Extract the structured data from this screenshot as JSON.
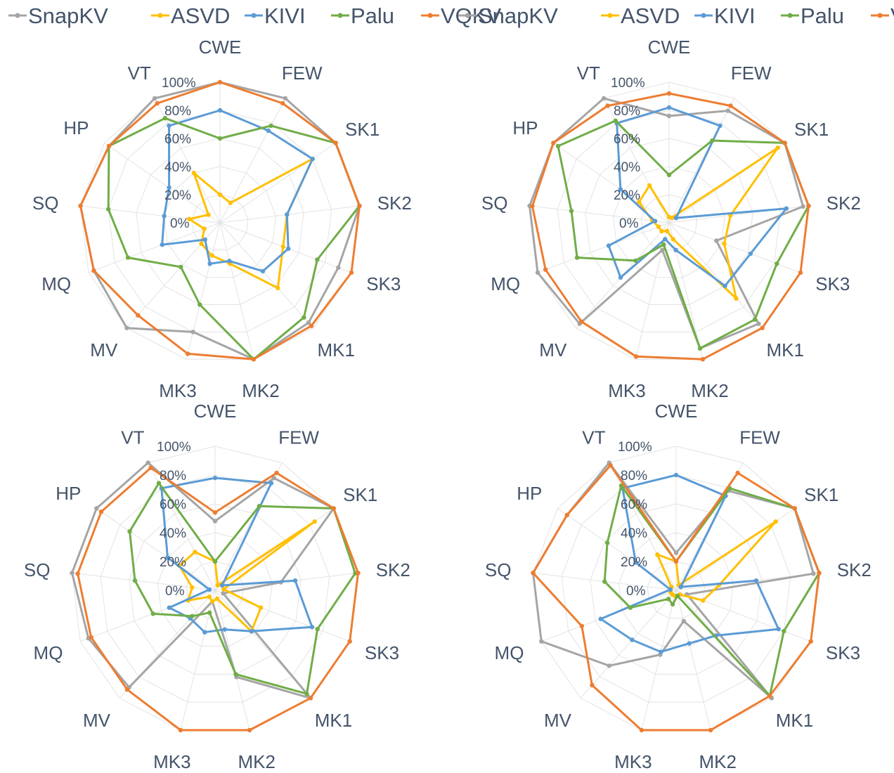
{
  "chart_data": {
    "type": "radar",
    "axis_labels": [
      "CWE",
      "FEW",
      "SK1",
      "SK2",
      "SK3",
      "MK1",
      "MK2",
      "MK3",
      "MV",
      "MQ",
      "SQ",
      "HP",
      "VT"
    ],
    "ticks": [
      "0%",
      "20%",
      "40%",
      "60%",
      "80%",
      "100%"
    ],
    "range": [
      0,
      100
    ],
    "legend": [
      {
        "name": "SnapKV",
        "color": "#a5a5a5"
      },
      {
        "name": "ASVD",
        "color": "#ffc000"
      },
      {
        "name": "KIVI",
        "color": "#5b9bd5"
      },
      {
        "name": "Palu",
        "color": "#70ad47"
      },
      {
        "name": "VQKV",
        "color": "#ed7d31"
      }
    ],
    "charts": [
      {
        "series": [
          {
            "name": "SnapKV",
            "values": [
              100,
              100,
              100,
              100,
              90,
              95,
              100,
              80,
              100,
              96,
              100,
              96,
              100
            ]
          },
          {
            "name": "ASVD",
            "values": [
              20,
              16,
              80,
              48,
              48,
              62,
              30,
              24,
              20,
              12,
              22,
              10,
              40
            ]
          },
          {
            "name": "KIVI",
            "values": [
              80,
              74,
              80,
              48,
              52,
              46,
              28,
              30,
              16,
              44,
              40,
              44,
              78
            ]
          },
          {
            "name": "Palu",
            "values": [
              60,
              78,
              100,
              100,
              74,
              90,
              100,
              60,
              42,
              70,
              80,
              96,
              84
            ]
          },
          {
            "name": "VQKV",
            "values": [
              100,
              96,
              100,
              100,
              100,
              98,
              100,
              96,
              88,
              96,
              100,
              96,
              96
            ]
          }
        ]
      },
      {
        "series": [
          {
            "name": "SnapKV",
            "values": [
              76,
              90,
              100,
              96,
              36,
              96,
              92,
              20,
              96,
              100,
              100,
              100,
              100
            ]
          },
          {
            "name": "ASVD",
            "values": [
              4,
              4,
              94,
              44,
              42,
              72,
              12,
              6,
              8,
              8,
              12,
              26,
              30
            ]
          },
          {
            "name": "KIVI",
            "values": [
              82,
              78,
              6,
              84,
              62,
              60,
              20,
              12,
              52,
              46,
              10,
              42,
              80
            ]
          },
          {
            "name": "Palu",
            "values": [
              34,
              66,
              100,
              100,
              82,
              92,
              92,
              16,
              36,
              70,
              70,
              96,
              82
            ]
          },
          {
            "name": "VQKV",
            "values": [
              92,
              94,
              100,
              100,
              100,
              100,
              100,
              98,
              94,
              94,
              98,
              100,
              94
            ]
          }
        ]
      },
      {
        "series": [
          {
            "name": "SnapKV",
            "values": [
              48,
              88,
              100,
              46,
              6,
              100,
              62,
              8,
              90,
              94,
              100,
              100,
              100
            ]
          },
          {
            "name": "ASVD",
            "values": [
              20,
              4,
              84,
              6,
              34,
              38,
              6,
              8,
              6,
              20,
              16,
              30,
              30
            ]
          },
          {
            "name": "KIVI",
            "values": [
              78,
              84,
              6,
              56,
              72,
              38,
              28,
              30,
              26,
              34,
              4,
              40,
              80
            ]
          },
          {
            "name": "Palu",
            "values": [
              20,
              66,
              100,
              98,
              76,
              96,
              60,
              16,
              24,
              46,
              56,
              72,
              84
            ]
          },
          {
            "name": "VQKV",
            "values": [
              54,
              92,
              100,
              100,
              100,
              100,
              100,
              100,
              92,
              92,
              96,
              96,
              96
            ]
          }
        ]
      },
      {
        "series": [
          {
            "name": "SnapKV",
            "values": [
              26,
              78,
              100,
              96,
              8,
              100,
              22,
              46,
              70,
              100,
              100,
              92,
              100
            ]
          },
          {
            "name": "ASVD",
            "values": [
              20,
              4,
              84,
              30,
              20,
              4,
              4,
              4,
              4,
              4,
              4,
              4,
              28
            ]
          },
          {
            "name": "KIVI",
            "values": [
              80,
              74,
              4,
              56,
              76,
              42,
              38,
              44,
              46,
              56,
              4,
              34,
              80
            ]
          },
          {
            "name": "Palu",
            "values": [
              20,
              80,
              100,
              100,
              80,
              98,
              4,
              10,
              8,
              34,
              50,
              58,
              82
            ]
          },
          {
            "name": "VQKV",
            "values": [
              20,
              92,
              100,
              100,
              100,
              98,
              100,
              100,
              88,
              70,
              100,
              92,
              98
            ]
          }
        ]
      }
    ]
  }
}
